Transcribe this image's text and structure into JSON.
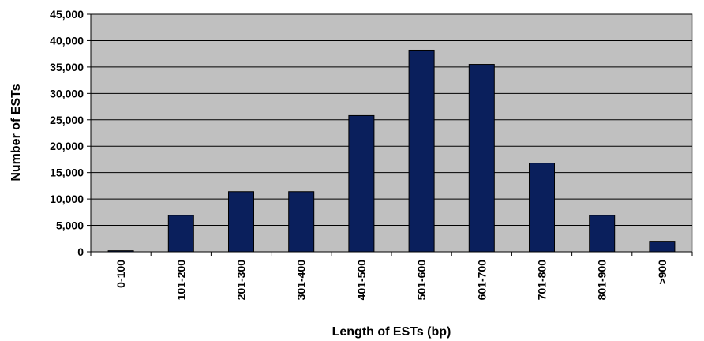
{
  "chart_data": {
    "type": "bar",
    "title": "",
    "xlabel": "Length of ESTs (bp)",
    "ylabel": "Number of ESTs",
    "categories": [
      "0-100",
      "101-200",
      "201-300",
      "301-400",
      "401-500",
      "501-600",
      "601-700",
      "701-800",
      "801-900",
      ">900"
    ],
    "values": [
      200,
      6900,
      11400,
      11400,
      25800,
      38200,
      35500,
      16800,
      6900,
      2000
    ],
    "ylim": [
      0,
      45000
    ],
    "yticks": [
      0,
      5000,
      10000,
      15000,
      20000,
      25000,
      30000,
      35000,
      40000,
      45000
    ],
    "ytick_labels": [
      "0",
      "5,000",
      "10,000",
      "15,000",
      "20,000",
      "25,000",
      "30,000",
      "35,000",
      "40,000",
      "45,000"
    ],
    "grid": true,
    "legend": "none",
    "colors": {
      "bar_fill": "#0a1f5c",
      "bar_stroke": "#000000",
      "plot_background": "#c0c0c0",
      "gridline": "#000000"
    }
  }
}
